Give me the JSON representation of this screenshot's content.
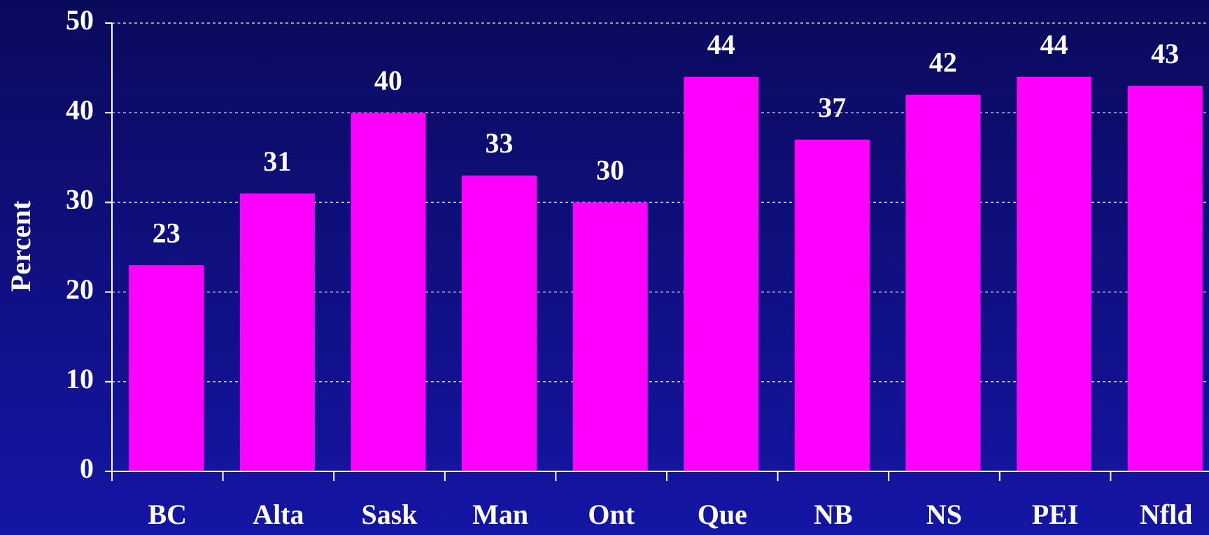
{
  "chart_data": {
    "type": "bar",
    "y_label": "Percent",
    "categories": [
      "BC",
      "Alta",
      "Sask",
      "Man",
      "Ont",
      "Que",
      "NB",
      "NS",
      "PEI",
      "Nfld"
    ],
    "values": [
      23,
      31,
      40,
      33,
      30,
      44,
      37,
      42,
      44,
      43
    ],
    "color": "#ff00ff",
    "ylim": [
      0,
      50
    ],
    "yticks": [
      0,
      10,
      20,
      30,
      40,
      50
    ],
    "grid": true
  }
}
